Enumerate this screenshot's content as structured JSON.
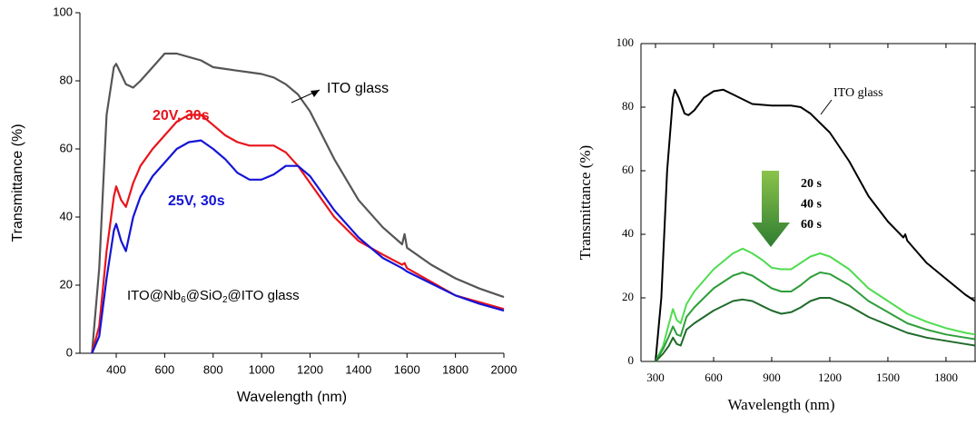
{
  "chart_data": [
    {
      "type": "line",
      "xlabel": "Wavelength (nm)",
      "ylabel": "Transmittance (%)",
      "xlim": [
        250,
        2000
      ],
      "ylim": [
        0,
        100
      ],
      "xticks": [
        400,
        600,
        800,
        1000,
        1200,
        1400,
        1600,
        1800,
        2000
      ],
      "yticks": [
        0,
        20,
        40,
        60,
        80,
        100
      ],
      "x": [
        300,
        330,
        360,
        390,
        400,
        420,
        440,
        470,
        500,
        550,
        600,
        650,
        700,
        750,
        800,
        850,
        900,
        950,
        1000,
        1050,
        1100,
        1150,
        1200,
        1300,
        1400,
        1500,
        1580,
        1590,
        1600,
        1700,
        1800,
        1900,
        2000
      ],
      "series": [
        {
          "name": "ITO glass",
          "color": "#555555",
          "values": [
            0,
            25,
            70,
            84,
            85,
            82,
            79,
            78,
            80,
            84,
            88,
            88,
            87,
            86,
            84,
            83.5,
            83,
            82.5,
            82,
            81,
            79,
            76,
            71,
            57,
            45,
            37,
            32,
            35,
            31,
            26,
            22,
            19,
            16.5
          ]
        },
        {
          "name": "20V, 30s",
          "color": "#e8141b",
          "values": [
            0,
            8,
            30,
            46,
            49,
            45,
            43,
            50,
            55,
            60,
            64,
            68,
            70,
            70,
            67,
            64,
            62,
            61,
            61,
            61,
            59,
            55,
            50,
            40,
            33,
            29,
            26,
            26.5,
            25,
            21,
            17,
            15,
            13
          ]
        },
        {
          "name": "25V, 30s",
          "color": "#1414d6",
          "values": [
            0,
            5,
            22,
            36,
            38,
            33,
            30,
            40,
            46,
            52,
            56,
            60,
            62,
            62.5,
            60,
            57,
            53,
            51,
            51,
            52.5,
            55,
            55,
            52,
            42,
            34,
            28,
            25,
            24.5,
            24,
            20.5,
            17,
            14.5,
            12.5
          ]
        }
      ],
      "sample_label": [
        "ITO@Nb",
        "6",
        "@SiO",
        "2",
        "@ITO glass"
      ]
    },
    {
      "type": "line",
      "xlabel": "Wavelength (nm)",
      "ylabel": "Transmittance (%)",
      "xlim": [
        225,
        1955
      ],
      "ylim": [
        0,
        100
      ],
      "xticks": [
        300,
        600,
        900,
        1200,
        1500,
        1800
      ],
      "yticks": [
        0,
        20,
        40,
        60,
        80,
        100
      ],
      "series": [
        {
          "name": "ITO glass",
          "color": "#000000",
          "x": [
            300,
            330,
            360,
            390,
            400,
            420,
            450,
            470,
            500,
            550,
            600,
            650,
            700,
            800,
            900,
            1000,
            1050,
            1100,
            1200,
            1300,
            1400,
            1500,
            1580,
            1590,
            1600,
            1700,
            1800,
            1900,
            1950
          ],
          "values": [
            0,
            20,
            60,
            83,
            85.5,
            83,
            78,
            77.5,
            79,
            83,
            85,
            85.5,
            84,
            81,
            80.5,
            80.5,
            80,
            78,
            72,
            63,
            52,
            44,
            39,
            40,
            38,
            31,
            26,
            21,
            19
          ]
        },
        {
          "name": "20 s",
          "color": "#4fdc4f",
          "x": [
            300,
            340,
            370,
            390,
            410,
            430,
            460,
            500,
            600,
            700,
            750,
            800,
            850,
            900,
            950,
            1000,
            1050,
            1100,
            1150,
            1200,
            1300,
            1400,
            1500,
            1600,
            1700,
            1800,
            1900,
            1950
          ],
          "values": [
            0,
            5,
            12,
            16.5,
            13,
            12,
            18,
            22,
            29,
            34,
            35.5,
            34,
            32,
            29.5,
            29,
            29,
            31,
            33,
            34,
            33,
            29,
            23,
            19,
            15,
            12.5,
            10.5,
            9,
            8.5
          ]
        },
        {
          "name": "40 s",
          "color": "#2e9e3a",
          "x": [
            300,
            340,
            370,
            390,
            410,
            430,
            460,
            500,
            600,
            700,
            750,
            800,
            850,
            900,
            950,
            1000,
            1050,
            1100,
            1150,
            1200,
            1300,
            1400,
            1500,
            1600,
            1700,
            1800,
            1900,
            1950
          ],
          "values": [
            0,
            4,
            8,
            11,
            8.5,
            8,
            14,
            17,
            23,
            27,
            28,
            27,
            25,
            23,
            22,
            22,
            24,
            26.5,
            28,
            27.5,
            24,
            19,
            15.5,
            12,
            10,
            8.5,
            7.5,
            7
          ]
        },
        {
          "name": "60 s",
          "color": "#1f6b2a",
          "x": [
            300,
            340,
            370,
            390,
            410,
            430,
            460,
            500,
            600,
            700,
            750,
            800,
            850,
            900,
            950,
            1000,
            1050,
            1100,
            1150,
            1200,
            1300,
            1400,
            1500,
            1600,
            1700,
            1800,
            1900,
            1950
          ],
          "values": [
            0,
            2.5,
            5,
            7.5,
            5.5,
            5,
            10,
            12,
            16,
            19,
            19.5,
            19,
            17.5,
            16,
            15,
            15.5,
            17,
            19,
            20,
            20,
            17.5,
            14,
            11.5,
            9,
            7.5,
            6.5,
            5.5,
            5
          ]
        }
      ]
    }
  ]
}
